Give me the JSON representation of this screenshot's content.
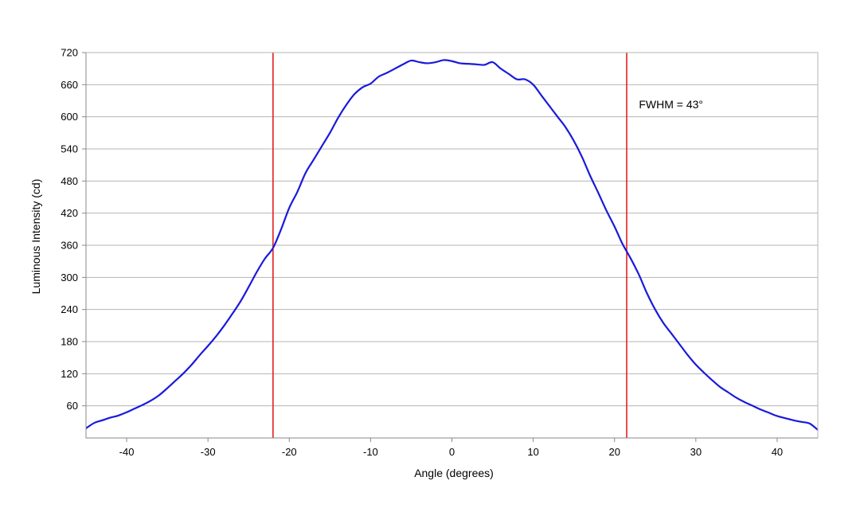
{
  "chart_data": {
    "type": "line",
    "title": "",
    "xlabel": "Angle (degrees)",
    "ylabel": "Luminous Intensity (cd)",
    "xlim": [
      -45,
      45
    ],
    "ylim": [
      0,
      720
    ],
    "xticks": [
      -40,
      -30,
      -20,
      -10,
      0,
      10,
      20,
      30,
      40
    ],
    "yticks": [
      60,
      120,
      180,
      240,
      300,
      360,
      420,
      480,
      540,
      600,
      660,
      720
    ],
    "grid": "horizontal",
    "legend": "none",
    "series": [
      {
        "color": "#1a1adb",
        "x": [
          -45,
          -44,
          -43,
          -42,
          -41,
          -40,
          -39,
          -38,
          -37,
          -36,
          -35,
          -34,
          -33,
          -32,
          -31,
          -30,
          -29,
          -28,
          -27,
          -26,
          -25,
          -24,
          -23,
          -22,
          -21,
          -20,
          -19,
          -18,
          -17,
          -16,
          -15,
          -14,
          -13,
          -12,
          -11,
          -10,
          -9,
          -8,
          -7,
          -6,
          -5,
          -4,
          -3,
          -2,
          -1,
          0,
          1,
          2,
          3,
          4,
          5,
          6,
          7,
          8,
          9,
          10,
          11,
          12,
          13,
          14,
          15,
          16,
          17,
          18,
          19,
          20,
          21,
          22,
          23,
          24,
          25,
          26,
          27,
          28,
          29,
          30,
          31,
          32,
          33,
          34,
          35,
          36,
          37,
          38,
          39,
          40,
          41,
          42,
          43,
          44,
          45
        ],
        "y": [
          18,
          28,
          33,
          38,
          42,
          48,
          55,
          62,
          70,
          80,
          93,
          107,
          121,
          137,
          155,
          172,
          190,
          210,
          232,
          255,
          282,
          310,
          335,
          355,
          390,
          430,
          460,
          495,
          520,
          545,
          570,
          598,
          622,
          642,
          655,
          662,
          675,
          682,
          690,
          698,
          705,
          702,
          700,
          702,
          706,
          704,
          700,
          699,
          698,
          697,
          702,
          690,
          680,
          670,
          670,
          660,
          640,
          620,
          600,
          580,
          555,
          525,
          490,
          458,
          425,
          395,
          362,
          335,
          305,
          270,
          240,
          215,
          195,
          175,
          155,
          137,
          122,
          108,
          95,
          85,
          75,
          67,
          60,
          53,
          47,
          41,
          37,
          33,
          30,
          27,
          15
        ]
      }
    ],
    "vlines": [
      {
        "x": -22,
        "color": "#e32020"
      },
      {
        "x": 21.5,
        "color": "#e32020"
      }
    ],
    "annotations": [
      {
        "text": "FWHM = 43°",
        "x": 23,
        "y": 623
      }
    ]
  }
}
